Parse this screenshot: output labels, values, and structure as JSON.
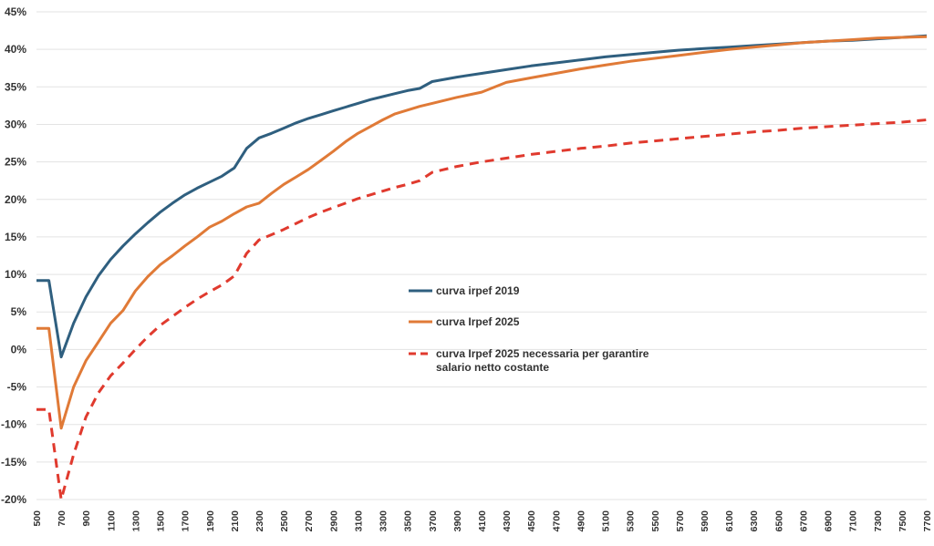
{
  "chart_data": {
    "type": "line",
    "title": "",
    "xlabel": "",
    "ylabel": "",
    "ylim": [
      -20,
      45
    ],
    "y_ticks": [
      "-20%",
      "-15%",
      "-10%",
      "-5%",
      "0%",
      "5%",
      "10%",
      "15%",
      "20%",
      "25%",
      "30%",
      "35%",
      "40%",
      "45%"
    ],
    "x_ticks": [
      500,
      700,
      900,
      1100,
      1300,
      1500,
      1700,
      1900,
      2100,
      2300,
      2500,
      2700,
      2900,
      3100,
      3300,
      3500,
      3700,
      3900,
      4100,
      4300,
      4500,
      4700,
      4900,
      5100,
      5300,
      5500,
      5700,
      5900,
      6100,
      6300,
      6500,
      6700,
      6900,
      7100,
      7300,
      7500,
      7700
    ],
    "x_ticks_text": [
      "500",
      "700",
      "900",
      "1100",
      "1300",
      "1500",
      "1700",
      "1900",
      "2100",
      "2300",
      "2500",
      "2700",
      "2900",
      "3100",
      "3300",
      "3500",
      "3700",
      "3900",
      "4100",
      "4300",
      "4500",
      "4700",
      "4900",
      "5100",
      "5300",
      "5500",
      "5700",
      "5900",
      "6100",
      "6300",
      "6500",
      "6700",
      "6900",
      "7100",
      "7300",
      "7500",
      "7700"
    ],
    "grid": true,
    "legend_position": "center",
    "series": [
      {
        "name": "curva irpef 2019",
        "color": "#2f5f7f",
        "dashed": false,
        "x": [
          500,
          600,
          700,
          800,
          900,
          1000,
          1100,
          1200,
          1300,
          1400,
          1500,
          1600,
          1700,
          1800,
          1900,
          2000,
          2100,
          2200,
          2300,
          2400,
          2500,
          2600,
          2700,
          2800,
          2900,
          3000,
          3100,
          3200,
          3300,
          3400,
          3500,
          3600,
          3700,
          3900,
          4100,
          4300,
          4500,
          4700,
          4900,
          5100,
          5300,
          5500,
          5700,
          5900,
          6100,
          6300,
          6500,
          6700,
          6900,
          7100,
          7300,
          7500,
          7700
        ],
        "values": [
          9.2,
          9.2,
          -1.0,
          3.5,
          7.0,
          9.8,
          12.0,
          13.8,
          15.4,
          16.9,
          18.3,
          19.5,
          20.6,
          21.5,
          22.3,
          23.1,
          24.2,
          26.8,
          28.2,
          28.8,
          29.5,
          30.2,
          30.8,
          31.3,
          31.8,
          32.3,
          32.8,
          33.3,
          33.7,
          34.1,
          34.5,
          34.8,
          35.7,
          36.3,
          36.8,
          37.3,
          37.8,
          38.2,
          38.6,
          39.0,
          39.3,
          39.6,
          39.9,
          40.1,
          40.3,
          40.5,
          40.7,
          40.9,
          41.1,
          41.2,
          41.4,
          41.6,
          41.8
        ]
      },
      {
        "name": "curva Irpef 2025",
        "color": "#e07a37",
        "dashed": false,
        "x": [
          500,
          600,
          700,
          800,
          900,
          1000,
          1100,
          1200,
          1300,
          1400,
          1500,
          1600,
          1700,
          1800,
          1900,
          2000,
          2100,
          2200,
          2300,
          2400,
          2500,
          2600,
          2700,
          2800,
          2900,
          3000,
          3100,
          3200,
          3300,
          3400,
          3500,
          3600,
          3700,
          3900,
          4100,
          4300,
          4500,
          4700,
          4900,
          5100,
          5300,
          5500,
          5700,
          5900,
          6100,
          6300,
          6500,
          6700,
          6900,
          7100,
          7300,
          7500,
          7700
        ],
        "values": [
          2.8,
          2.8,
          -10.5,
          -5.0,
          -1.5,
          1.0,
          3.5,
          5.2,
          7.8,
          9.7,
          11.3,
          12.5,
          13.8,
          15.0,
          16.3,
          17.1,
          18.1,
          19.0,
          19.5,
          20.8,
          22.0,
          23.0,
          24.0,
          25.2,
          26.4,
          27.7,
          28.8,
          29.7,
          30.6,
          31.4,
          31.9,
          32.4,
          32.8,
          33.6,
          34.3,
          35.6,
          36.2,
          36.8,
          37.4,
          37.9,
          38.4,
          38.8,
          39.2,
          39.6,
          40.0,
          40.3,
          40.6,
          40.9,
          41.1,
          41.3,
          41.5,
          41.6,
          41.7
        ]
      },
      {
        "name": "curva Irpef 2025 necessaria per garantire salario netto costante",
        "color": "#e03a2e",
        "dashed": true,
        "x": [
          500,
          600,
          700,
          800,
          900,
          1000,
          1100,
          1200,
          1300,
          1400,
          1500,
          1600,
          1700,
          1800,
          1900,
          2000,
          2100,
          2200,
          2300,
          2400,
          2500,
          2600,
          2700,
          2800,
          2900,
          3000,
          3100,
          3200,
          3300,
          3400,
          3500,
          3600,
          3700,
          3900,
          4100,
          4300,
          4500,
          4700,
          4900,
          5100,
          5300,
          5500,
          5700,
          5900,
          6100,
          6300,
          6500,
          6700,
          6900,
          7100,
          7300,
          7500,
          7700
        ],
        "values": [
          -8.0,
          -8.0,
          -20.0,
          -14.0,
          -9.0,
          -5.8,
          -3.5,
          -1.8,
          0.0,
          1.7,
          3.2,
          4.4,
          5.6,
          6.7,
          7.7,
          8.6,
          9.8,
          12.8,
          14.6,
          15.3,
          16.0,
          16.8,
          17.6,
          18.3,
          18.9,
          19.5,
          20.1,
          20.6,
          21.1,
          21.6,
          22.0,
          22.5,
          23.6,
          24.4,
          25.0,
          25.5,
          26.0,
          26.4,
          26.8,
          27.1,
          27.5,
          27.8,
          28.1,
          28.4,
          28.7,
          29.0,
          29.2,
          29.5,
          29.7,
          29.9,
          30.1,
          30.3,
          30.6
        ]
      }
    ]
  }
}
